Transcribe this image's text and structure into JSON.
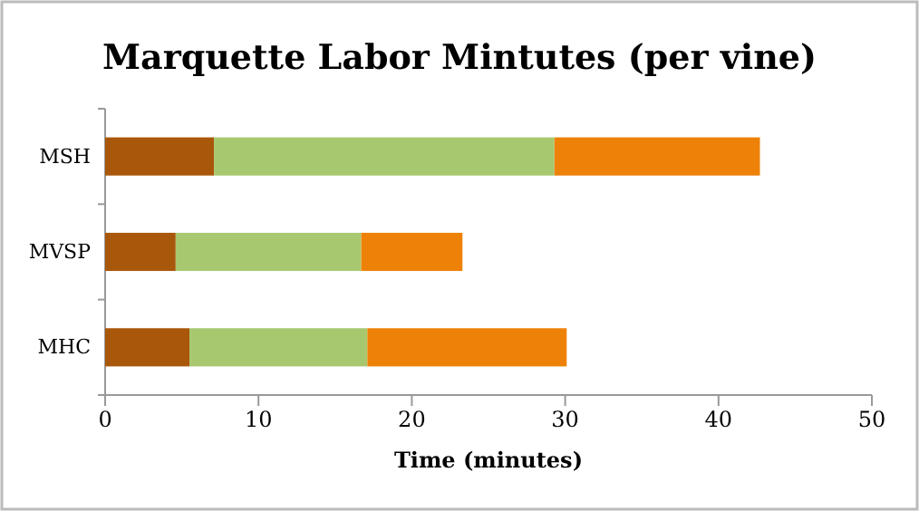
{
  "chart_data": {
    "type": "bar",
    "orientation": "horizontal",
    "stacked": true,
    "title": "Marquette Labor Mintutes (per vine)",
    "xlabel": "Time (minutes)",
    "categories": [
      "MSH",
      "MVSP",
      "MHC"
    ],
    "series": [
      {
        "color": "#a9570a",
        "values": [
          7.1,
          4.6,
          5.5
        ]
      },
      {
        "color": "#a8c870",
        "values": [
          22.2,
          12.1,
          11.6
        ]
      },
      {
        "color": "#ee8209",
        "values": [
          13.4,
          6.6,
          13.0
        ]
      }
    ],
    "xlim": [
      0,
      50
    ],
    "xticks": [
      0,
      10,
      20,
      30,
      40,
      50
    ]
  }
}
